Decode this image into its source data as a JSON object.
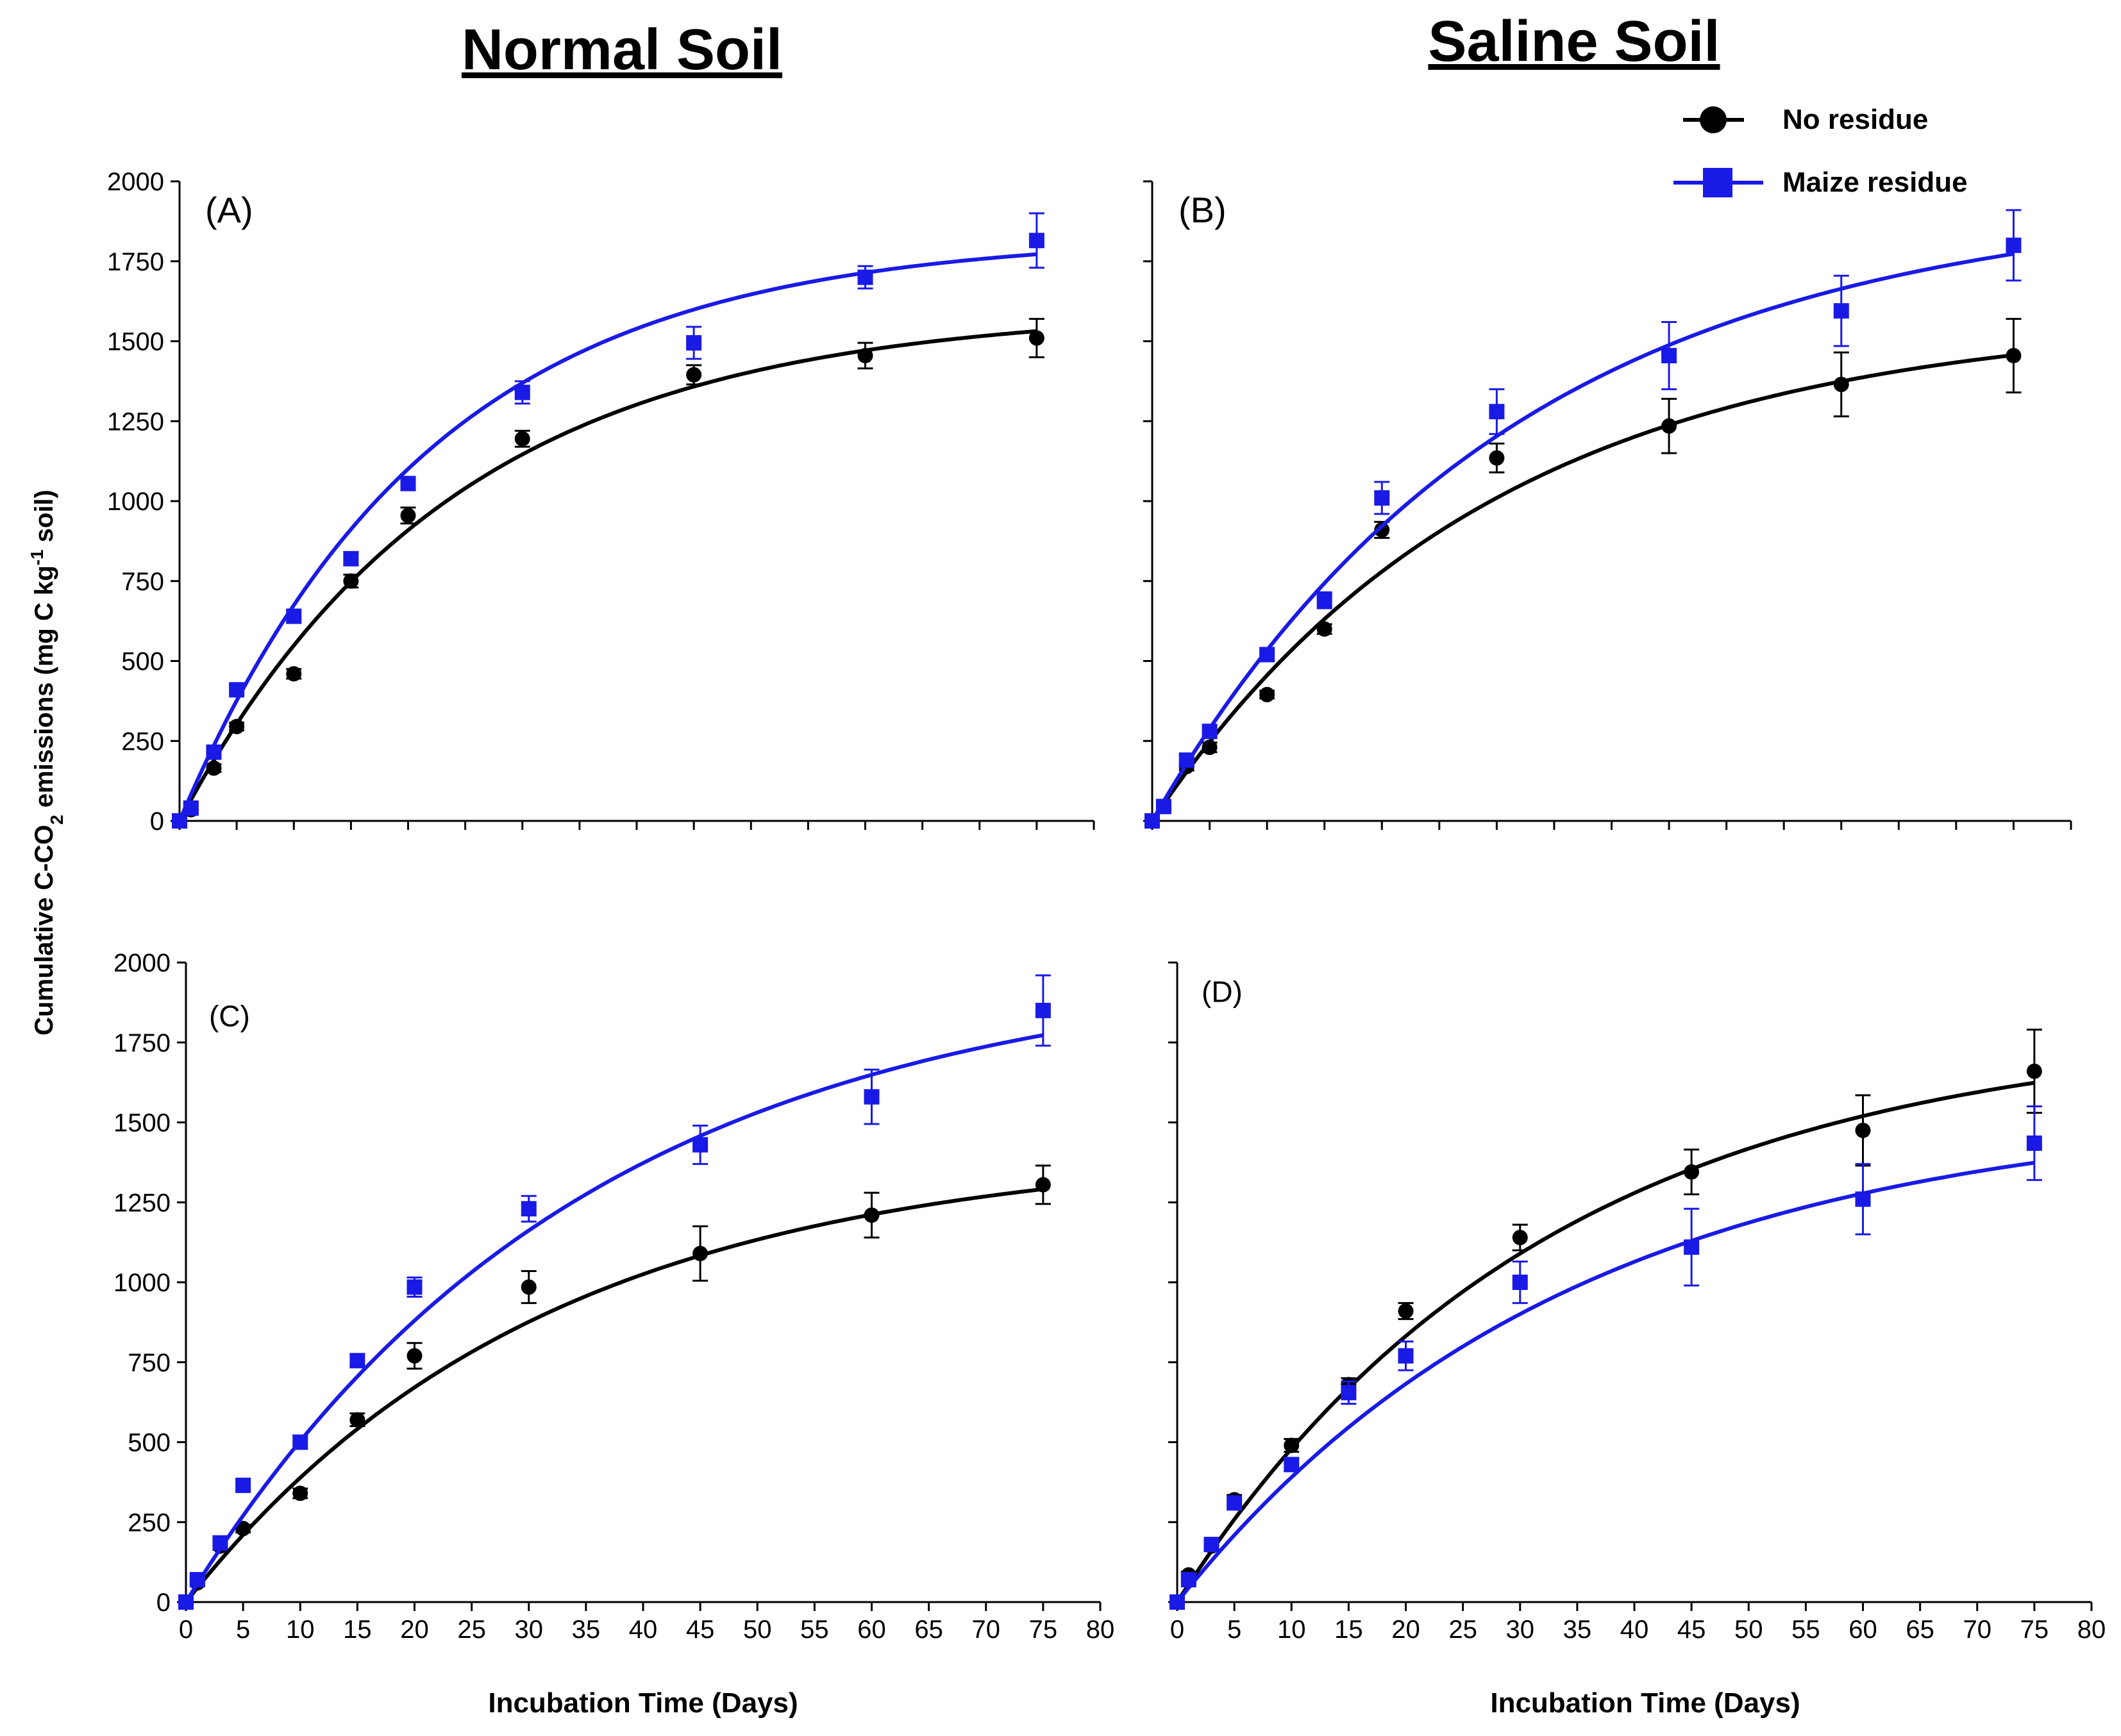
{
  "column_titles": {
    "normal": "Normal Soil",
    "saline": "Saline Soil"
  },
  "y_axis_label": "Cumulative C-CO",
  "y_axis_label_sub": "2",
  "y_axis_label_mid": " emissions (mg C kg",
  "y_axis_label_sup": "-1",
  "y_axis_label_end": " soil)",
  "x_axis_label": "Incubation Time (Days)",
  "legend": {
    "no_residue": "No residue",
    "maize_residue": "Maize residue"
  },
  "colors": {
    "no_residue": "#000000",
    "maize_residue": "#1a1ae6"
  },
  "icons": {
    "no_residue": "circle-marker",
    "maize_residue": "square-marker"
  },
  "chart_data": [
    {
      "panel": "(A)",
      "type": "scatter-with-fit",
      "soil": "Normal Soil",
      "ylim": [
        0,
        2000
      ],
      "yticks": [
        0,
        250,
        500,
        750,
        1000,
        1250,
        1500,
        1750,
        2000
      ],
      "xlim": [
        0,
        80
      ],
      "xticks": [],
      "series": [
        {
          "name": "No residue",
          "x": [
            0,
            1,
            3,
            5,
            10,
            15,
            20,
            30,
            45,
            60,
            75
          ],
          "y": [
            0,
            35,
            165,
            295,
            460,
            750,
            955,
            1195,
            1395,
            1455,
            1510
          ],
          "err": [
            10,
            10,
            12,
            12,
            15,
            20,
            25,
            25,
            30,
            40,
            60
          ],
          "fit": {
            "a": 1600,
            "k": 0.042
          }
        },
        {
          "name": "Maize residue",
          "x": [
            0,
            1,
            3,
            5,
            10,
            15,
            20,
            30,
            45,
            60,
            75
          ],
          "y": [
            0,
            40,
            215,
            410,
            640,
            820,
            1055,
            1340,
            1495,
            1700,
            1815
          ],
          "err": [
            10,
            10,
            15,
            15,
            20,
            20,
            20,
            35,
            50,
            35,
            85
          ],
          "fit": {
            "a": 1830,
            "k": 0.046
          }
        }
      ]
    },
    {
      "panel": "(B)",
      "type": "scatter-with-fit",
      "soil": "Saline Soil",
      "ylim": [
        0,
        2000
      ],
      "yticks": [
        0,
        250,
        500,
        750,
        1000,
        1250,
        1500,
        1750,
        2000
      ],
      "xlim": [
        0,
        80
      ],
      "xticks": [],
      "series": [
        {
          "name": "No residue",
          "x": [
            0,
            1,
            3,
            5,
            10,
            15,
            20,
            30,
            45,
            60,
            75
          ],
          "y": [
            0,
            45,
            170,
            230,
            395,
            600,
            910,
            1135,
            1235,
            1365,
            1455
          ],
          "err": [
            10,
            10,
            12,
            15,
            12,
            15,
            25,
            45,
            85,
            100,
            115
          ],
          "fit": {
            "a": 1580,
            "k": 0.034
          }
        },
        {
          "name": "Maize residue",
          "x": [
            0,
            1,
            3,
            5,
            10,
            15,
            20,
            30,
            45,
            60,
            75
          ],
          "y": [
            0,
            45,
            190,
            280,
            520,
            690,
            1010,
            1280,
            1455,
            1595,
            1800
          ],
          "err": [
            10,
            10,
            15,
            20,
            20,
            25,
            50,
            70,
            105,
            110,
            110
          ],
          "fit": {
            "a": 1950,
            "k": 0.032
          }
        }
      ]
    },
    {
      "panel": "(C)",
      "type": "scatter-with-fit",
      "soil": "Normal Soil",
      "ylim": [
        0,
        2000
      ],
      "yticks": [
        0,
        250,
        500,
        750,
        1000,
        1250,
        1500,
        1750,
        2000
      ],
      "xlim": [
        0,
        80
      ],
      "xticks": [
        0,
        5,
        10,
        15,
        20,
        25,
        30,
        35,
        40,
        45,
        50,
        55,
        60,
        65,
        70,
        75,
        80
      ],
      "series": [
        {
          "name": "No residue",
          "x": [
            0,
            1,
            3,
            5,
            10,
            15,
            20,
            30,
            45,
            60,
            75
          ],
          "y": [
            0,
            60,
            175,
            230,
            340,
            570,
            770,
            985,
            1090,
            1210,
            1305
          ],
          "err": [
            10,
            10,
            12,
            12,
            15,
            20,
            40,
            50,
            85,
            70,
            60
          ],
          "fit": {
            "a": 1420,
            "k": 0.032
          }
        },
        {
          "name": "Maize residue",
          "x": [
            0,
            1,
            3,
            5,
            10,
            15,
            20,
            30,
            45,
            60,
            75
          ],
          "y": [
            0,
            70,
            185,
            365,
            500,
            755,
            985,
            1230,
            1430,
            1580,
            1850
          ],
          "err": [
            10,
            10,
            15,
            15,
            20,
            20,
            30,
            40,
            60,
            85,
            110
          ],
          "fit": {
            "a": 2000,
            "k": 0.029
          }
        }
      ]
    },
    {
      "panel": "(D)",
      "type": "scatter-with-fit",
      "soil": "Saline Soil",
      "ylim": [
        0,
        2000
      ],
      "yticks": [
        0,
        250,
        500,
        750,
        1000,
        1250,
        1500,
        1750,
        2000
      ],
      "xlim": [
        0,
        80
      ],
      "xticks": [
        0,
        5,
        10,
        15,
        20,
        25,
        30,
        35,
        40,
        45,
        50,
        55,
        60,
        65,
        70,
        75,
        80
      ],
      "series": [
        {
          "name": "No residue",
          "x": [
            0,
            1,
            3,
            5,
            10,
            15,
            20,
            30,
            45,
            60,
            75
          ],
          "y": [
            0,
            85,
            175,
            320,
            490,
            680,
            910,
            1140,
            1345,
            1475,
            1660
          ],
          "err": [
            10,
            10,
            12,
            15,
            20,
            20,
            25,
            40,
            70,
            110,
            130
          ],
          "fit": {
            "a": 1800,
            "k": 0.031
          }
        },
        {
          "name": "Maize residue",
          "x": [
            0,
            1,
            3,
            5,
            10,
            15,
            20,
            30,
            45,
            60,
            75
          ],
          "y": [
            0,
            70,
            180,
            310,
            430,
            655,
            770,
            1000,
            1110,
            1260,
            1435
          ],
          "err": [
            10,
            10,
            15,
            15,
            20,
            35,
            45,
            65,
            120,
            110,
            115
          ],
          "fit": {
            "a": 1550,
            "k": 0.029
          }
        }
      ]
    }
  ]
}
